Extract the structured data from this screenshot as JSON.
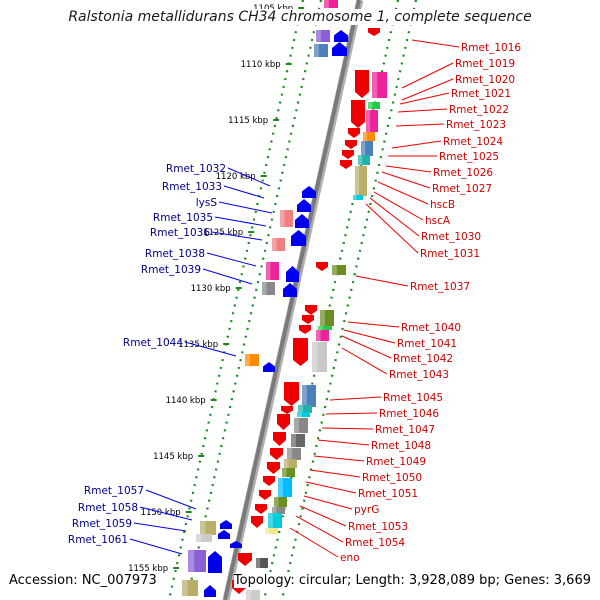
{
  "title": "Ralstonia metallidurans CH34 chromosome 1, complete sequence",
  "accession": "Accession: NC_007973",
  "topology": "Topology: circular; Length: 3,928,089 bp; Genes: 3,669",
  "colors": {
    "forward_label": "#00008b",
    "reverse_label": "#cc0000",
    "tick": "#1a8a1a",
    "backbone": "#7a7a7a",
    "forward_arrow": "#0000ee",
    "reverse_arrow": "#ee0000"
  },
  "kbp_ticks": [
    "1105 kbp",
    "1110 kbp",
    "1115 kbp",
    "1120 kbp",
    "1125 kbp",
    "1130 kbp",
    "1135 kbp",
    "1140 kbp",
    "1145 kbp",
    "1150 kbp",
    "1155 kbp"
  ],
  "forward_genes": [
    "Rmet_1032",
    "Rmet_1033",
    "lysS",
    "Rmet_1035",
    "Rmet_1036",
    "Rmet_1038",
    "Rmet_1039",
    "Rmet_1044",
    "Rmet_1057",
    "Rmet_1058",
    "Rmet_1059",
    "Rmet_1061"
  ],
  "reverse_genes": [
    "Rmet_1016",
    "Rmet_1019",
    "Rmet_1020",
    "Rmet_1021",
    "Rmet_1022",
    "Rmet_1023",
    "Rmet_1024",
    "Rmet_1025",
    "Rmet_1026",
    "Rmet_1027",
    "hscB",
    "hscA",
    "Rmet_1030",
    "Rmet_1031",
    "Rmet_1037",
    "Rmet_1040",
    "Rmet_1041",
    "Rmet_1042",
    "Rmet_1043",
    "Rmet_1045",
    "Rmet_1046",
    "Rmet_1047",
    "Rmet_1048",
    "Rmet_1049",
    "Rmet_1050",
    "Rmet_1051",
    "pyrG",
    "Rmet_1053",
    "Rmet_1054",
    "eno"
  ]
}
